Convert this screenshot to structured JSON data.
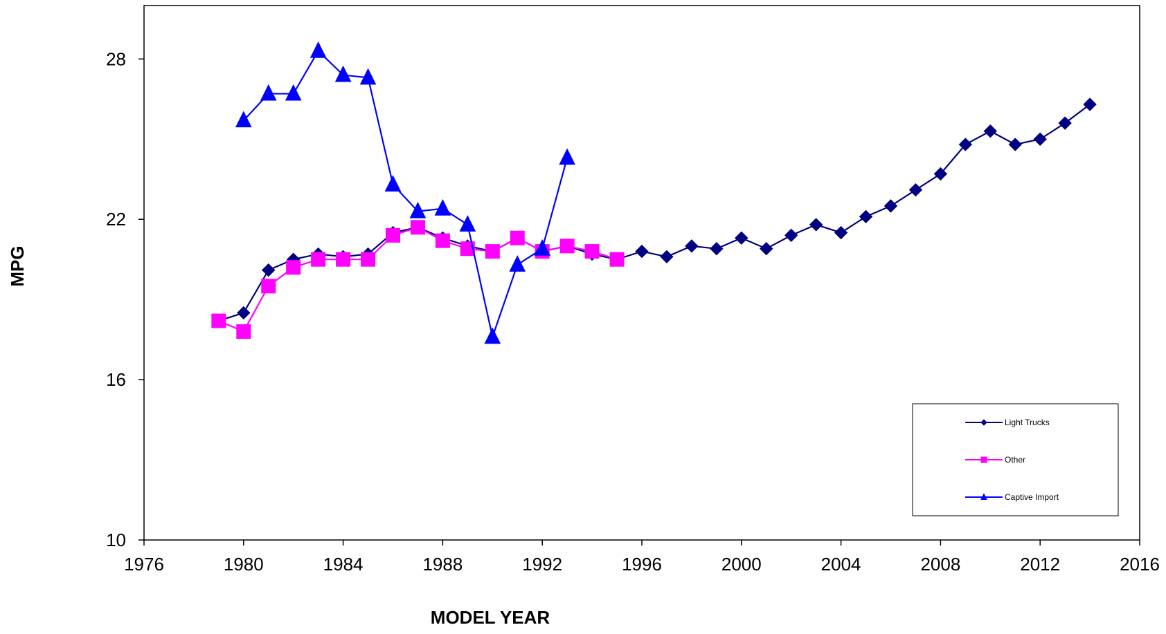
{
  "chart_data": {
    "type": "line",
    "title": "",
    "xlabel": "MODEL YEAR",
    "ylabel": "MPG",
    "xlim": [
      1976,
      2016
    ],
    "ylim": [
      10,
      30
    ],
    "xticks": [
      1976,
      1980,
      1984,
      1988,
      1992,
      1996,
      2000,
      2004,
      2008,
      2012,
      2016
    ],
    "yticks": [
      10,
      16,
      22,
      28
    ],
    "grid": false,
    "legend_position": "bottom-right",
    "series": [
      {
        "name": "Light Trucks",
        "color": "#000080",
        "marker": "diamond",
        "x": [
          1979,
          1980,
          1981,
          1982,
          1983,
          1984,
          1985,
          1986,
          1987,
          1988,
          1989,
          1990,
          1991,
          1992,
          1993,
          1994,
          1995,
          1996,
          1997,
          1998,
          1999,
          2000,
          2001,
          2002,
          2003,
          2004,
          2005,
          2006,
          2007,
          2008,
          2009,
          2010,
          2011,
          2012,
          2013,
          2014
        ],
        "y": [
          18.2,
          18.5,
          20.1,
          20.5,
          20.7,
          20.6,
          20.7,
          21.5,
          21.7,
          21.3,
          21.0,
          20.8,
          21.3,
          20.8,
          21.0,
          20.7,
          20.5,
          20.8,
          20.6,
          21.0,
          20.9,
          21.3,
          20.9,
          21.4,
          21.8,
          21.5,
          22.1,
          22.5,
          23.1,
          23.7,
          24.8,
          25.3,
          24.8,
          25.0,
          25.6,
          26.3
        ]
      },
      {
        "name": "Other",
        "color": "#ff00ff",
        "marker": "square",
        "x": [
          1979,
          1980,
          1981,
          1982,
          1983,
          1984,
          1985,
          1986,
          1987,
          1988,
          1989,
          1990,
          1991,
          1992,
          1993,
          1994,
          1995
        ],
        "y": [
          18.2,
          17.8,
          19.5,
          20.2,
          20.5,
          20.5,
          20.5,
          21.4,
          21.7,
          21.2,
          20.9,
          20.8,
          21.3,
          20.8,
          21.0,
          20.8,
          20.5
        ]
      },
      {
        "name": "Captive Import",
        "color": "#0000ff",
        "marker": "triangle",
        "x": [
          1980,
          1981,
          1982,
          1983,
          1984,
          1985,
          1986,
          1987,
          1988,
          1989,
          1990,
          1991,
          1992,
          1993
        ],
        "y": [
          25.7,
          26.7,
          26.7,
          28.3,
          27.4,
          27.3,
          23.3,
          22.3,
          22.4,
          21.8,
          17.6,
          20.3,
          20.9,
          24.3
        ]
      }
    ]
  }
}
